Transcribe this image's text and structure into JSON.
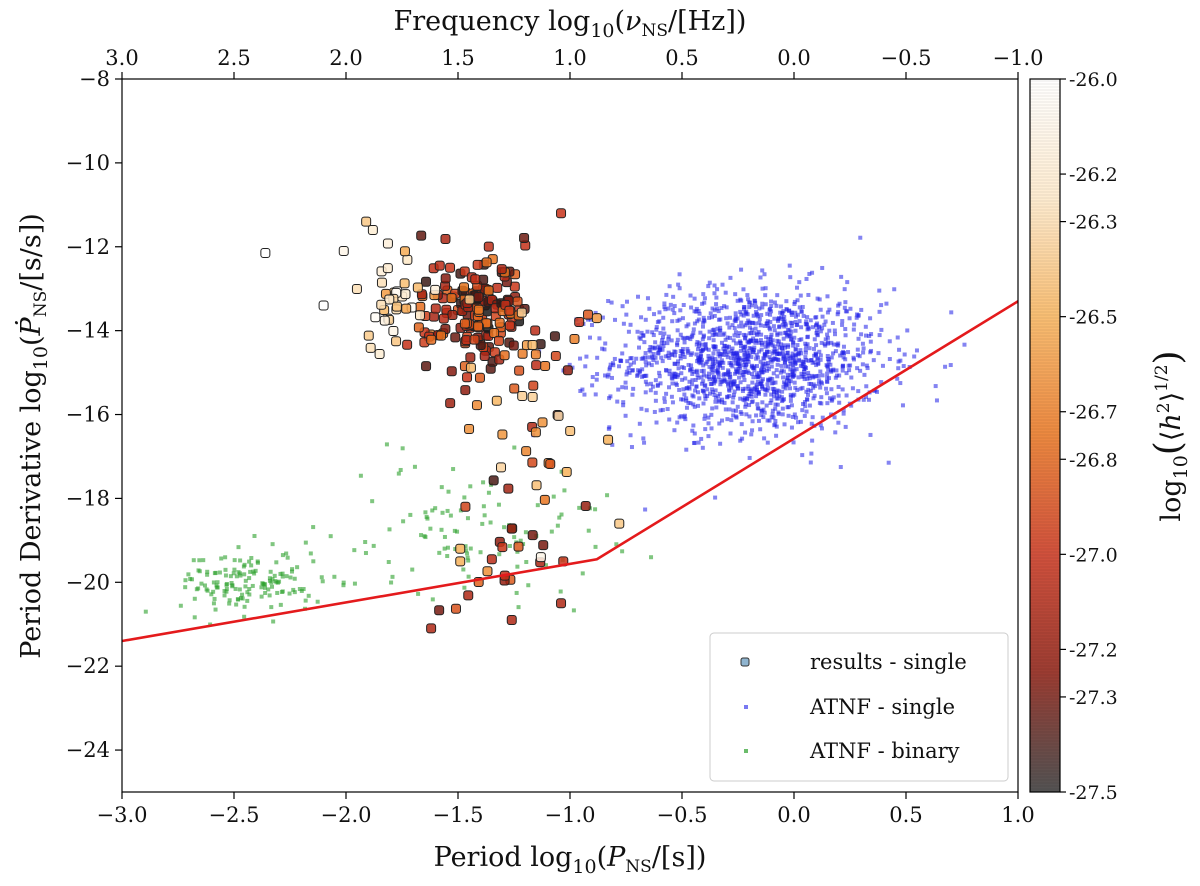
{
  "chart_data": {
    "type": "scatter",
    "title": "",
    "xlabel": "Period log10(P_NS/[s])",
    "ylabel": "Period Derivative log10(Ṗ_NS/[s/s])",
    "top_xlabel": "Frequency log10(ν_NS/[Hz])",
    "colorbar_label": "log10(⟨h²⟩^1/2)",
    "xlim": [
      -3.0,
      1.0
    ],
    "ylim": [
      -25,
      -8
    ],
    "x_ticks": [
      -3.0,
      -2.5,
      -2.0,
      -1.5,
      -1.0,
      -0.5,
      0.0,
      0.5,
      1.0
    ],
    "x_tick_labels": [
      "−3.0",
      "−2.5",
      "−2.0",
      "−1.5",
      "−1.0",
      "−0.5",
      "0.0",
      "0.5",
      "1.0"
    ],
    "y_ticks": [
      -24,
      -22,
      -20,
      -18,
      -16,
      -14,
      -12,
      -10,
      -8
    ],
    "y_tick_labels": [
      "−24",
      "−22",
      "−20",
      "−18",
      "−16",
      "−14",
      "−12",
      "−10",
      "−8"
    ],
    "top_x_ticks": [
      3.0,
      2.5,
      2.0,
      1.5,
      1.0,
      0.5,
      0.0,
      -0.5,
      -1.0
    ],
    "top_x_tick_labels": [
      "3.0",
      "2.5",
      "2.0",
      "1.5",
      "1.0",
      "0.5",
      "0.0",
      "−0.5",
      "−1.0"
    ],
    "colorbar_range": [
      -27.5,
      -26.0
    ],
    "colorbar_ticks": [
      -26.0,
      -26.2,
      -26.3,
      -26.5,
      -26.7,
      -26.8,
      -27.0,
      -27.2,
      -27.3,
      -27.5
    ],
    "colorbar_tick_labels": [
      "-26.0",
      "-26.2",
      "-26.3",
      "-26.5",
      "-26.7",
      "-26.8",
      "-27.0",
      "-27.2",
      "-27.3",
      "-27.5"
    ],
    "colormap_colors": [
      "#1a1a1a",
      "#8a1a0e",
      "#c8321a",
      "#e8731e",
      "#f7b25a",
      "#fde8c8",
      "#ffffff"
    ],
    "legend_position": "lower-right",
    "grid": false,
    "series": [
      {
        "name": "results - single",
        "marker": "square",
        "color": "colormap",
        "clusters": [
          {
            "cx": -1.42,
            "cy": -13.6,
            "sx": 0.12,
            "sy": 0.65,
            "n": 170,
            "cmin": -27.5,
            "cmax": -26.7
          },
          {
            "cx": -1.78,
            "cy": -13.2,
            "sx": 0.09,
            "sy": 0.55,
            "n": 35,
            "cmin": -26.6,
            "cmax": -26.0
          },
          {
            "cx": -1.25,
            "cy": -15.5,
            "sx": 0.18,
            "sy": 1.6,
            "n": 50,
            "cmin": -27.4,
            "cmax": -26.3
          },
          {
            "cx": -1.25,
            "cy": -19.6,
            "sx": 0.15,
            "sy": 0.6,
            "n": 14,
            "cmin": -27.3,
            "cmax": -26.8
          }
        ],
        "points": [
          {
            "x": -2.36,
            "y": -12.15,
            "c": -26.0
          },
          {
            "x": -2.1,
            "y": -13.4,
            "c": -26.0
          },
          {
            "x": -2.01,
            "y": -12.1,
            "c": -26.1
          },
          {
            "x": -1.91,
            "y": -11.4,
            "c": -26.4
          },
          {
            "x": -1.88,
            "y": -11.6,
            "c": -26.2
          },
          {
            "x": -1.04,
            "y": -11.2,
            "c": -27.0
          },
          {
            "x": -1.62,
            "y": -21.1,
            "c": -27.1
          },
          {
            "x": -1.03,
            "y": -19.5,
            "c": -27.0
          },
          {
            "x": -1.04,
            "y": -20.5,
            "c": -27.1
          },
          {
            "x": -1.26,
            "y": -20.9,
            "c": -27.1
          },
          {
            "x": -0.78,
            "y": -18.6,
            "c": -26.4
          },
          {
            "x": -0.83,
            "y": -16.6,
            "c": -26.5
          },
          {
            "x": -1.13,
            "y": -19.4,
            "c": -26.1
          },
          {
            "x": -1.49,
            "y": -19.5,
            "c": -26.5
          },
          {
            "x": -1.49,
            "y": -19.2,
            "c": -26.5
          },
          {
            "x": -0.88,
            "y": -13.7,
            "c": -26.6
          },
          {
            "x": -0.98,
            "y": -14.2,
            "c": -26.7
          }
        ]
      },
      {
        "name": "ATNF - single",
        "marker": "small-square",
        "color": "#1f1fe8",
        "clusters": [
          {
            "cx": -0.2,
            "cy": -14.7,
            "sx": 0.3,
            "sy": 0.85,
            "n": 1500
          }
        ]
      },
      {
        "name": "ATNF - binary",
        "marker": "small-square",
        "color": "#2ca02c",
        "clusters": [
          {
            "cx": -2.42,
            "cy": -20.0,
            "sx": 0.16,
            "sy": 0.38,
            "n": 150
          },
          {
            "cx": -1.45,
            "cy": -18.7,
            "sx": 0.32,
            "sy": 0.8,
            "n": 110
          }
        ]
      }
    ],
    "line": {
      "name": "",
      "color": "#e41a1c",
      "x": [
        -3.0,
        -0.88,
        1.0
      ],
      "y": [
        -21.4,
        -19.45,
        -13.3
      ]
    }
  }
}
